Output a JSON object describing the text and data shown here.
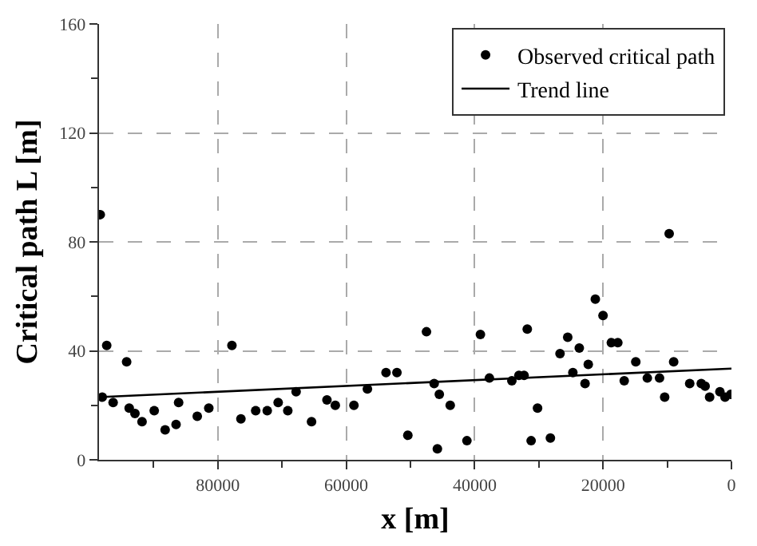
{
  "chart_data": {
    "type": "scatter",
    "xlabel": "x [m]",
    "ylabel": "Critical path L [m]",
    "xlim": [
      98500,
      0
    ],
    "ylim": [
      0,
      160
    ],
    "xticks": [
      {
        "value": 90000,
        "label": null
      },
      80000,
      {
        "value": 70000,
        "label": null
      },
      60000,
      {
        "value": 50000,
        "label": null
      },
      40000,
      {
        "value": 30000,
        "label": null
      },
      20000,
      {
        "value": 10000,
        "label": null
      },
      0
    ],
    "yticks": [
      0,
      {
        "value": 20,
        "label": null
      },
      40,
      {
        "value": 60,
        "label": null
      },
      80,
      {
        "value": 100,
        "label": null
      },
      120,
      {
        "value": 140,
        "label": null
      },
      160
    ],
    "grid": true,
    "legend": "top right",
    "series": [
      {
        "name": "Observed critical path",
        "marker": "circle",
        "color": "#000000",
        "x": [
          98300,
          98000,
          97300,
          96300,
          94200,
          93800,
          92900,
          91800,
          89900,
          88200,
          86500,
          86100,
          83200,
          81400,
          77800,
          76400,
          74100,
          72300,
          70600,
          69100,
          67800,
          65400,
          63000,
          61700,
          58800,
          56700,
          53800,
          52100,
          50400,
          47500,
          46300,
          45500,
          45800,
          43800,
          41200,
          39100,
          37700,
          34200,
          33100,
          32300,
          31800,
          31200,
          30200,
          28200,
          26700,
          25500,
          24700,
          23700,
          22800,
          22300,
          21200,
          20000,
          18700,
          17700,
          16700,
          14900,
          13100,
          11200,
          10400,
          9700,
          9000,
          6500,
          4700,
          4100,
          3400,
          1800,
          1000,
          100
        ],
        "values": [
          90,
          23,
          42,
          21,
          36,
          19,
          17,
          14,
          18,
          11,
          13,
          21,
          16,
          19,
          42,
          15,
          18,
          18,
          21,
          18,
          25,
          14,
          22,
          20,
          20,
          26,
          32,
          32,
          9,
          47,
          28,
          24,
          4,
          20,
          7,
          46,
          30,
          29,
          31,
          31,
          48,
          7,
          19,
          8,
          39,
          45,
          32,
          41,
          28,
          35,
          59,
          53,
          43,
          43,
          29,
          36,
          30,
          30,
          23,
          83,
          36,
          28,
          28,
          27,
          23,
          25,
          23,
          24
        ]
      },
      {
        "name": "Trend line",
        "type": "line",
        "line_style": "solid",
        "color": "#000000",
        "x": [
          98500,
          0
        ],
        "values": [
          23,
          33.5
        ]
      }
    ]
  }
}
